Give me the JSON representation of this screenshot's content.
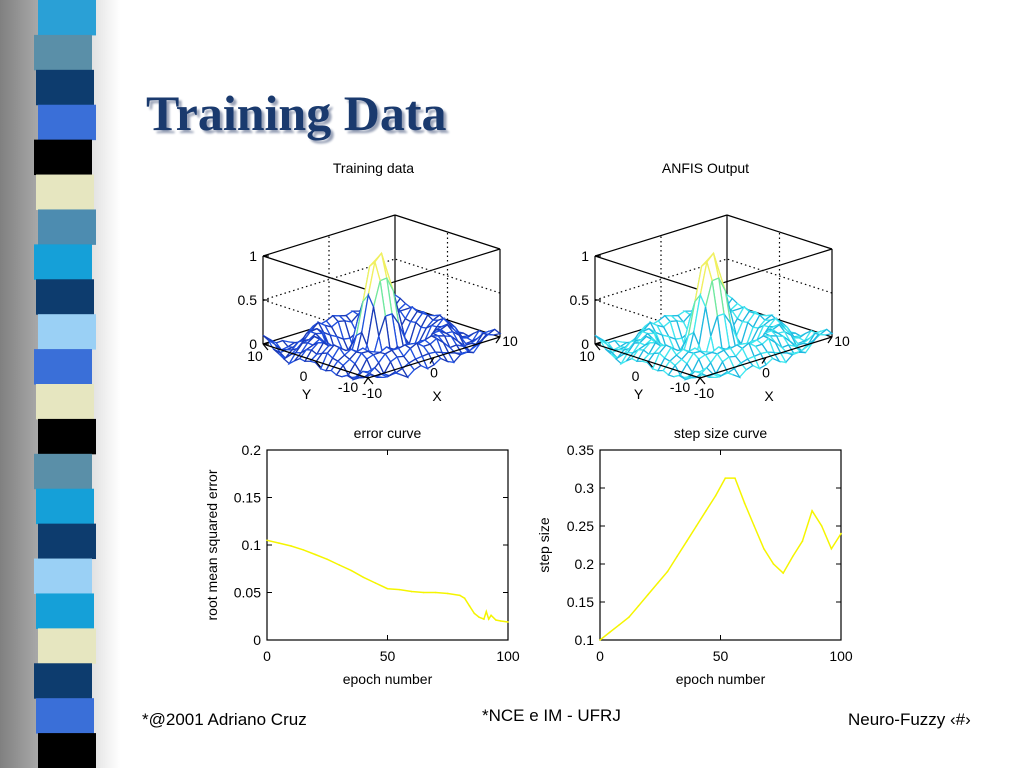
{
  "slide": {
    "title": "Training Data",
    "footer_left": "*@2001 Adriano Cruz",
    "footer_center": "*NCE e IM - UFRJ",
    "footer_right": "Neuro-Fuzzy ‹#›"
  },
  "sidebar": {
    "stripe_colors": [
      "#2aa0d6",
      "#5a8fa8",
      "#0d3c6e",
      "#3a6fd8",
      "#000000",
      "#e6e6c0",
      "#4d8cb0",
      "#15a0d8",
      "#0d3c6e",
      "#9ad0f5",
      "#3a6fd8",
      "#e6e6c0",
      "#000000",
      "#5a8fa8",
      "#15a0d8",
      "#0d3c6e",
      "#9ad0f5",
      "#15a0d8",
      "#e6e6c0",
      "#0d3c6e",
      "#3a6fd8",
      "#000000"
    ]
  },
  "chart_data": [
    {
      "type": "surface",
      "title": "Training data",
      "xlabel": "X",
      "ylabel": "Y",
      "xticks": [
        "-10",
        "0",
        "10"
      ],
      "yticks": [
        "-10",
        "0",
        "10"
      ],
      "zticks": [
        "0",
        "0.5",
        "1"
      ],
      "zlim": [
        0,
        1
      ],
      "colors": [
        "#1a3ab8",
        "#2050e0"
      ]
    },
    {
      "type": "surface",
      "title": "ANFIS Output",
      "xlabel": "X",
      "ylabel": "Y",
      "xticks": [
        "-10",
        "0",
        "10"
      ],
      "yticks": [
        "-10",
        "0",
        "10"
      ],
      "zticks": [
        "0",
        "0.5",
        "1"
      ],
      "zlim": [
        0,
        1
      ],
      "colors": [
        "#20b8e0",
        "#40e8f0"
      ]
    },
    {
      "type": "line",
      "title": "error curve",
      "xlabel": "epoch number",
      "ylabel": "root mean squared error",
      "xlim": [
        0,
        100
      ],
      "ylim": [
        0,
        0.2
      ],
      "xticks": [
        "0",
        "50",
        "100"
      ],
      "yticks": [
        "0",
        "0.05",
        "0.1",
        "0.15",
        "0.2"
      ],
      "color": "#f5f500",
      "x": [
        0,
        5,
        10,
        15,
        20,
        25,
        30,
        35,
        40,
        45,
        50,
        55,
        60,
        65,
        70,
        75,
        80,
        82,
        84,
        86,
        88,
        90,
        91,
        92,
        93,
        95,
        97,
        100
      ],
      "y": [
        0.105,
        0.102,
        0.099,
        0.095,
        0.09,
        0.085,
        0.079,
        0.073,
        0.066,
        0.06,
        0.054,
        0.053,
        0.051,
        0.05,
        0.05,
        0.049,
        0.047,
        0.044,
        0.036,
        0.028,
        0.024,
        0.022,
        0.03,
        0.022,
        0.026,
        0.021,
        0.02,
        0.019
      ]
    },
    {
      "type": "line",
      "title": "step size curve",
      "xlabel": "epoch number",
      "ylabel": "step size",
      "xlim": [
        0,
        100
      ],
      "ylim": [
        0.1,
        0.35
      ],
      "xticks": [
        "0",
        "50",
        "100"
      ],
      "yticks": [
        "0.1",
        "0.15",
        "0.2",
        "0.25",
        "0.3",
        "0.35"
      ],
      "color": "#f5f500",
      "x": [
        0,
        4,
        8,
        12,
        16,
        20,
        24,
        28,
        32,
        36,
        40,
        44,
        48,
        52,
        56,
        60,
        64,
        68,
        72,
        76,
        80,
        84,
        88,
        92,
        96,
        100
      ],
      "y": [
        0.1,
        0.11,
        0.12,
        0.13,
        0.145,
        0.16,
        0.175,
        0.19,
        0.21,
        0.23,
        0.25,
        0.27,
        0.29,
        0.313,
        0.313,
        0.28,
        0.25,
        0.22,
        0.2,
        0.188,
        0.21,
        0.23,
        0.27,
        0.25,
        0.22,
        0.24
      ]
    }
  ]
}
